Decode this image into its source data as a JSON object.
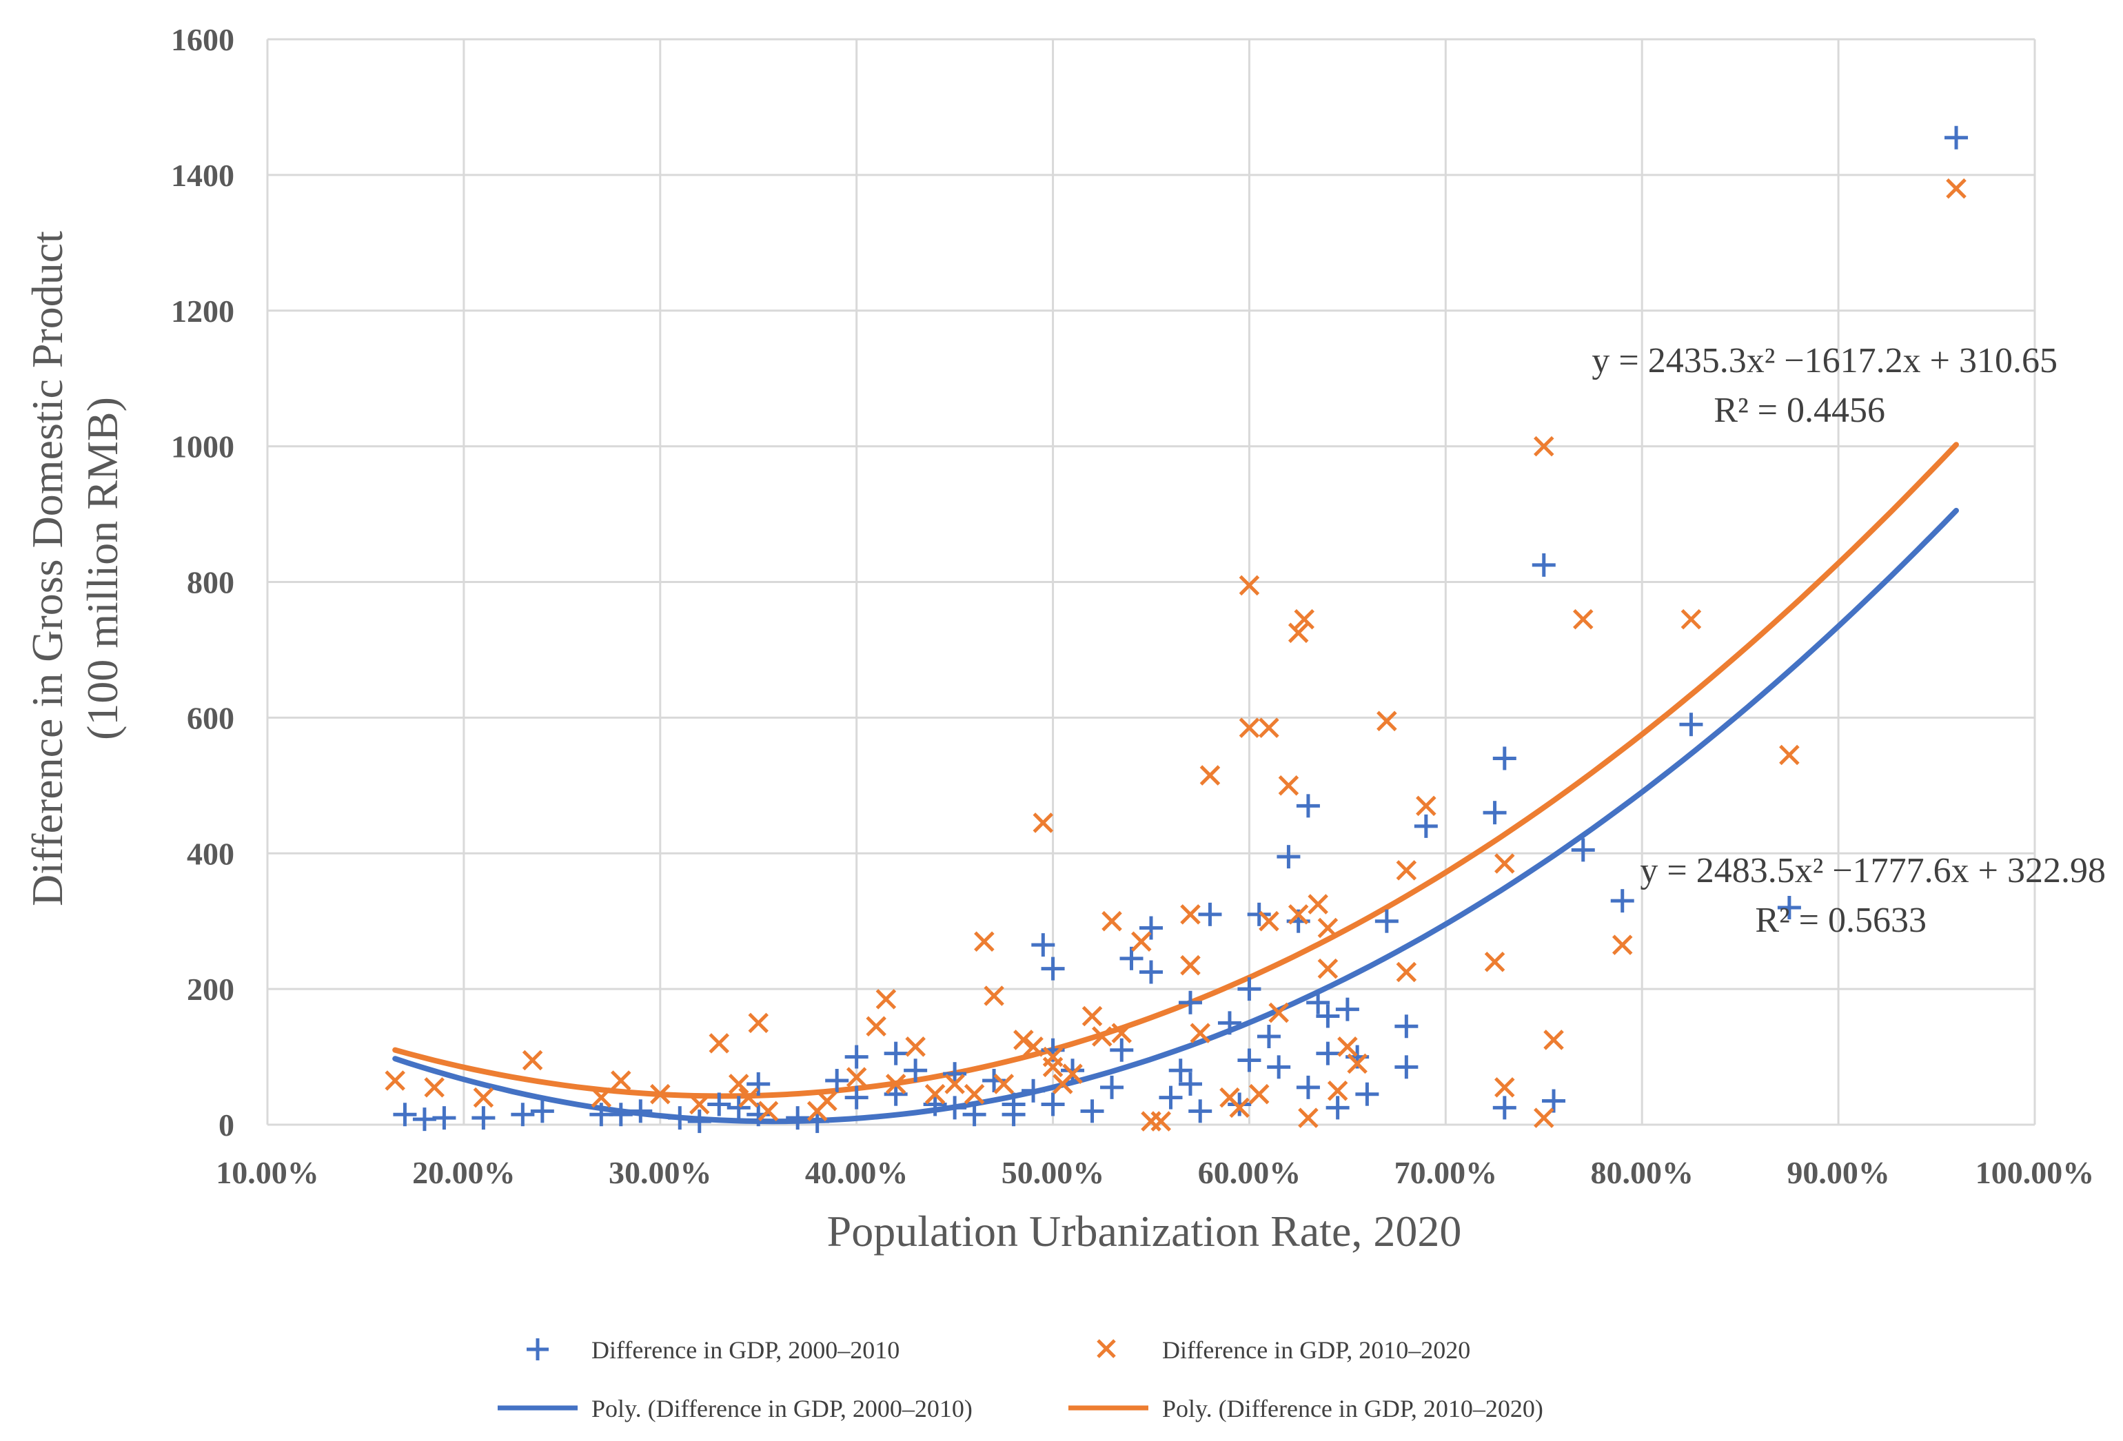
{
  "chart_data": {
    "type": "scatter",
    "xlabel": "Population Urbanization Rate, 2020",
    "ylabel_line1": "Difference in Gross Domestic Product",
    "ylabel_line2": "(100 million RMB)",
    "xlim": [
      0.1,
      1.0
    ],
    "ylim": [
      0,
      1600
    ],
    "x_ticks": [
      0.1,
      0.2,
      0.3,
      0.4,
      0.5,
      0.6,
      0.7,
      0.8,
      0.9,
      1.0
    ],
    "x_tick_labels": [
      "10.00%",
      "20.00%",
      "30.00%",
      "40.00%",
      "50.00%",
      "60.00%",
      "70.00%",
      "80.00%",
      "90.00%",
      "100.00%"
    ],
    "y_ticks": [
      0,
      200,
      400,
      600,
      800,
      1000,
      1200,
      1400,
      1600
    ],
    "y_tick_labels": [
      "0",
      "200",
      "400",
      "600",
      "800",
      "1000",
      "1200",
      "1400",
      "1600"
    ],
    "grid": true,
    "legend_position": "bottom",
    "series": [
      {
        "name": "Difference in GDP, 2000–2010",
        "marker": "plus",
        "color": "#4472C4",
        "points": [
          [
            0.17,
            15
          ],
          [
            0.18,
            8
          ],
          [
            0.19,
            10
          ],
          [
            0.21,
            10
          ],
          [
            0.23,
            15
          ],
          [
            0.24,
            20
          ],
          [
            0.27,
            15
          ],
          [
            0.28,
            15
          ],
          [
            0.29,
            20
          ],
          [
            0.31,
            10
          ],
          [
            0.32,
            5
          ],
          [
            0.33,
            30
          ],
          [
            0.34,
            25
          ],
          [
            0.35,
            15
          ],
          [
            0.35,
            60
          ],
          [
            0.37,
            10
          ],
          [
            0.38,
            5
          ],
          [
            0.39,
            65
          ],
          [
            0.4,
            100
          ],
          [
            0.4,
            40
          ],
          [
            0.42,
            105
          ],
          [
            0.42,
            45
          ],
          [
            0.43,
            80
          ],
          [
            0.44,
            30
          ],
          [
            0.45,
            75
          ],
          [
            0.45,
            25
          ],
          [
            0.46,
            15
          ],
          [
            0.47,
            65
          ],
          [
            0.48,
            30
          ],
          [
            0.48,
            15
          ],
          [
            0.49,
            50
          ],
          [
            0.495,
            265
          ],
          [
            0.5,
            230
          ],
          [
            0.5,
            110
          ],
          [
            0.5,
            30
          ],
          [
            0.51,
            80
          ],
          [
            0.52,
            20
          ],
          [
            0.53,
            55
          ],
          [
            0.535,
            110
          ],
          [
            0.54,
            245
          ],
          [
            0.55,
            290
          ],
          [
            0.55,
            225
          ],
          [
            0.56,
            40
          ],
          [
            0.565,
            80
          ],
          [
            0.57,
            180
          ],
          [
            0.57,
            60
          ],
          [
            0.575,
            20
          ],
          [
            0.58,
            310
          ],
          [
            0.59,
            150
          ],
          [
            0.595,
            30
          ],
          [
            0.6,
            95
          ],
          [
            0.6,
            200
          ],
          [
            0.605,
            310
          ],
          [
            0.61,
            130
          ],
          [
            0.615,
            85
          ],
          [
            0.62,
            395
          ],
          [
            0.625,
            300
          ],
          [
            0.63,
            470
          ],
          [
            0.63,
            55
          ],
          [
            0.635,
            180
          ],
          [
            0.64,
            160
          ],
          [
            0.64,
            105
          ],
          [
            0.645,
            25
          ],
          [
            0.65,
            170
          ],
          [
            0.655,
            100
          ],
          [
            0.66,
            45
          ],
          [
            0.67,
            300
          ],
          [
            0.68,
            145
          ],
          [
            0.68,
            85
          ],
          [
            0.69,
            440
          ],
          [
            0.725,
            460
          ],
          [
            0.73,
            540
          ],
          [
            0.73,
            25
          ],
          [
            0.75,
            825
          ],
          [
            0.755,
            35
          ],
          [
            0.77,
            405
          ],
          [
            0.79,
            330
          ],
          [
            0.825,
            590
          ],
          [
            0.875,
            320
          ],
          [
            0.96,
            1455
          ]
        ]
      },
      {
        "name": "Difference in GDP, 2010–2020",
        "marker": "cross",
        "color": "#ED7D31",
        "points": [
          [
            0.165,
            65
          ],
          [
            0.185,
            55
          ],
          [
            0.21,
            40
          ],
          [
            0.235,
            95
          ],
          [
            0.27,
            40
          ],
          [
            0.28,
            65
          ],
          [
            0.3,
            45
          ],
          [
            0.32,
            30
          ],
          [
            0.33,
            120
          ],
          [
            0.34,
            60
          ],
          [
            0.345,
            40
          ],
          [
            0.35,
            150
          ],
          [
            0.355,
            20
          ],
          [
            0.38,
            20
          ],
          [
            0.385,
            35
          ],
          [
            0.4,
            70
          ],
          [
            0.41,
            145
          ],
          [
            0.415,
            185
          ],
          [
            0.42,
            60
          ],
          [
            0.43,
            115
          ],
          [
            0.44,
            45
          ],
          [
            0.45,
            60
          ],
          [
            0.46,
            45
          ],
          [
            0.465,
            270
          ],
          [
            0.47,
            190
          ],
          [
            0.475,
            60
          ],
          [
            0.485,
            125
          ],
          [
            0.49,
            115
          ],
          [
            0.495,
            445
          ],
          [
            0.5,
            100
          ],
          [
            0.5,
            85
          ],
          [
            0.505,
            60
          ],
          [
            0.51,
            75
          ],
          [
            0.52,
            160
          ],
          [
            0.525,
            130
          ],
          [
            0.53,
            300
          ],
          [
            0.535,
            135
          ],
          [
            0.545,
            270
          ],
          [
            0.55,
            5
          ],
          [
            0.555,
            5
          ],
          [
            0.57,
            310
          ],
          [
            0.57,
            235
          ],
          [
            0.575,
            135
          ],
          [
            0.58,
            515
          ],
          [
            0.59,
            40
          ],
          [
            0.595,
            25
          ],
          [
            0.6,
            585
          ],
          [
            0.6,
            795
          ],
          [
            0.605,
            45
          ],
          [
            0.61,
            585
          ],
          [
            0.61,
            300
          ],
          [
            0.615,
            165
          ],
          [
            0.62,
            500
          ],
          [
            0.625,
            310
          ],
          [
            0.625,
            725
          ],
          [
            0.628,
            745
          ],
          [
            0.63,
            10
          ],
          [
            0.635,
            325
          ],
          [
            0.64,
            290
          ],
          [
            0.64,
            230
          ],
          [
            0.645,
            50
          ],
          [
            0.65,
            115
          ],
          [
            0.655,
            90
          ],
          [
            0.67,
            595
          ],
          [
            0.68,
            375
          ],
          [
            0.68,
            225
          ],
          [
            0.69,
            470
          ],
          [
            0.725,
            240
          ],
          [
            0.73,
            385
          ],
          [
            0.73,
            55
          ],
          [
            0.75,
            1000
          ],
          [
            0.75,
            10
          ],
          [
            0.755,
            125
          ],
          [
            0.77,
            745
          ],
          [
            0.79,
            265
          ],
          [
            0.825,
            745
          ],
          [
            0.875,
            545
          ],
          [
            0.96,
            1380
          ]
        ]
      }
    ],
    "trendlines": [
      {
        "name": "Poly. (Difference in GDP, 2000–2010)",
        "color": "#4472C4",
        "coefficients": [
          2483.5,
          -1777.6,
          322.98
        ],
        "x_range": [
          0.165,
          0.96
        ],
        "equation": "y = 2483.5x² −1777.6x + 322.98",
        "r2": "R² = 0.5633"
      },
      {
        "name": "Poly. (Difference in GDP, 2010–2020)",
        "color": "#ED7D31",
        "coefficients": [
          2435.3,
          -1617.2,
          310.65
        ],
        "x_range": [
          0.165,
          0.96
        ],
        "equation": "y = 2435.3x² −1617.2x + 310.65",
        "r2": "R² = 0.4456"
      }
    ]
  }
}
